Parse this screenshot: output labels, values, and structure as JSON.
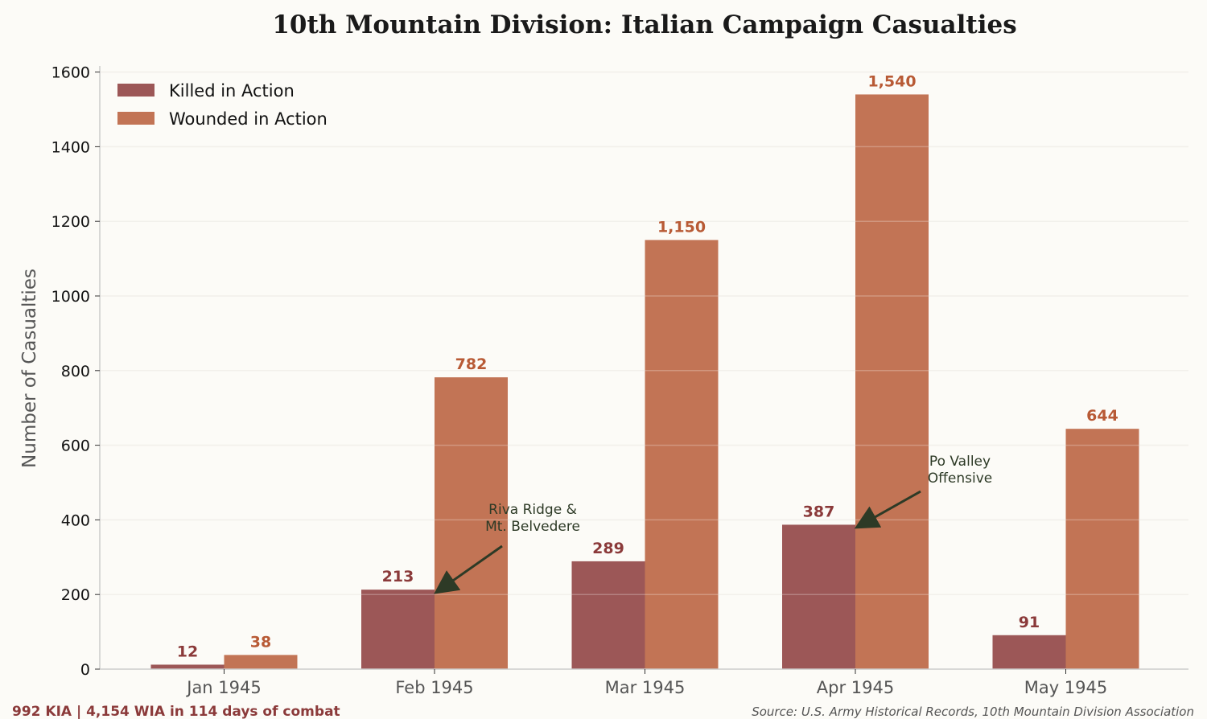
{
  "chart_data": {
    "type": "bar",
    "title": "10th Mountain Division: Italian Campaign Casualties",
    "xlabel": "",
    "ylabel": "Number of Casualties",
    "categories": [
      "Jan 1945",
      "Feb 1945",
      "Mar 1945",
      "Apr 1945",
      "May 1945"
    ],
    "series": [
      {
        "name": "Killed in Action",
        "values": [
          12,
          213,
          289,
          387,
          91
        ],
        "labels": [
          "12",
          "213",
          "289",
          "387",
          "91"
        ],
        "color": "#9c5757",
        "label_color": "#8b3a3a"
      },
      {
        "name": "Wounded in Action",
        "values": [
          38,
          782,
          1150,
          1540,
          644
        ],
        "labels": [
          "38",
          "782",
          "1,150",
          "1,540",
          "644"
        ],
        "color": "#c27455",
        "label_color": "#b85a35"
      }
    ],
    "ylim": [
      0,
      1600
    ],
    "yticks": [
      "0",
      "200",
      "400",
      "600",
      "800",
      "1000",
      "1200",
      "1400",
      "1600"
    ],
    "grid": true,
    "legend_position": "top-left",
    "annotations": [
      {
        "text": [
          "Riva Ridge &",
          "Mt. Belvedere"
        ],
        "category": "Feb 1945",
        "value": 213
      },
      {
        "text": [
          "Po Valley",
          "Offensive"
        ],
        "category": "Apr 1945",
        "value": 387
      }
    ]
  },
  "footer": {
    "summary": "992 KIA | 4,154 WIA in 114 days of combat",
    "source": "Source: U.S. Army Historical Records, 10th Mountain Division Association"
  }
}
